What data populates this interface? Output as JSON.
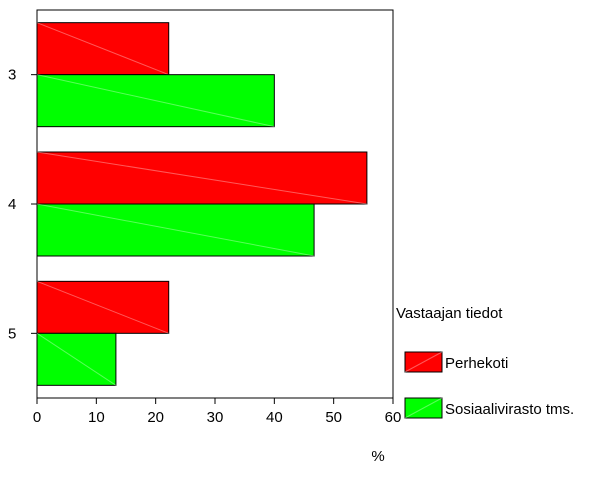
{
  "chart_data": {
    "type": "bar",
    "orientation": "horizontal",
    "categories": [
      "3",
      "4",
      "5"
    ],
    "series": [
      {
        "name": "Perhekoti",
        "color": "#ff0000",
        "values": [
          22.2,
          55.6,
          22.2
        ]
      },
      {
        "name": "Sosiaalivirasto tms.",
        "color": "#00ff00",
        "values": [
          40.0,
          46.7,
          13.3
        ]
      }
    ],
    "xlabel": "%",
    "xlim": [
      0,
      60
    ],
    "xticks": [
      "0",
      "10",
      "20",
      "30",
      "40",
      "50",
      "60"
    ],
    "legend_title": "Vastaajan tiedot",
    "legend_position": "right",
    "grid": false
  }
}
